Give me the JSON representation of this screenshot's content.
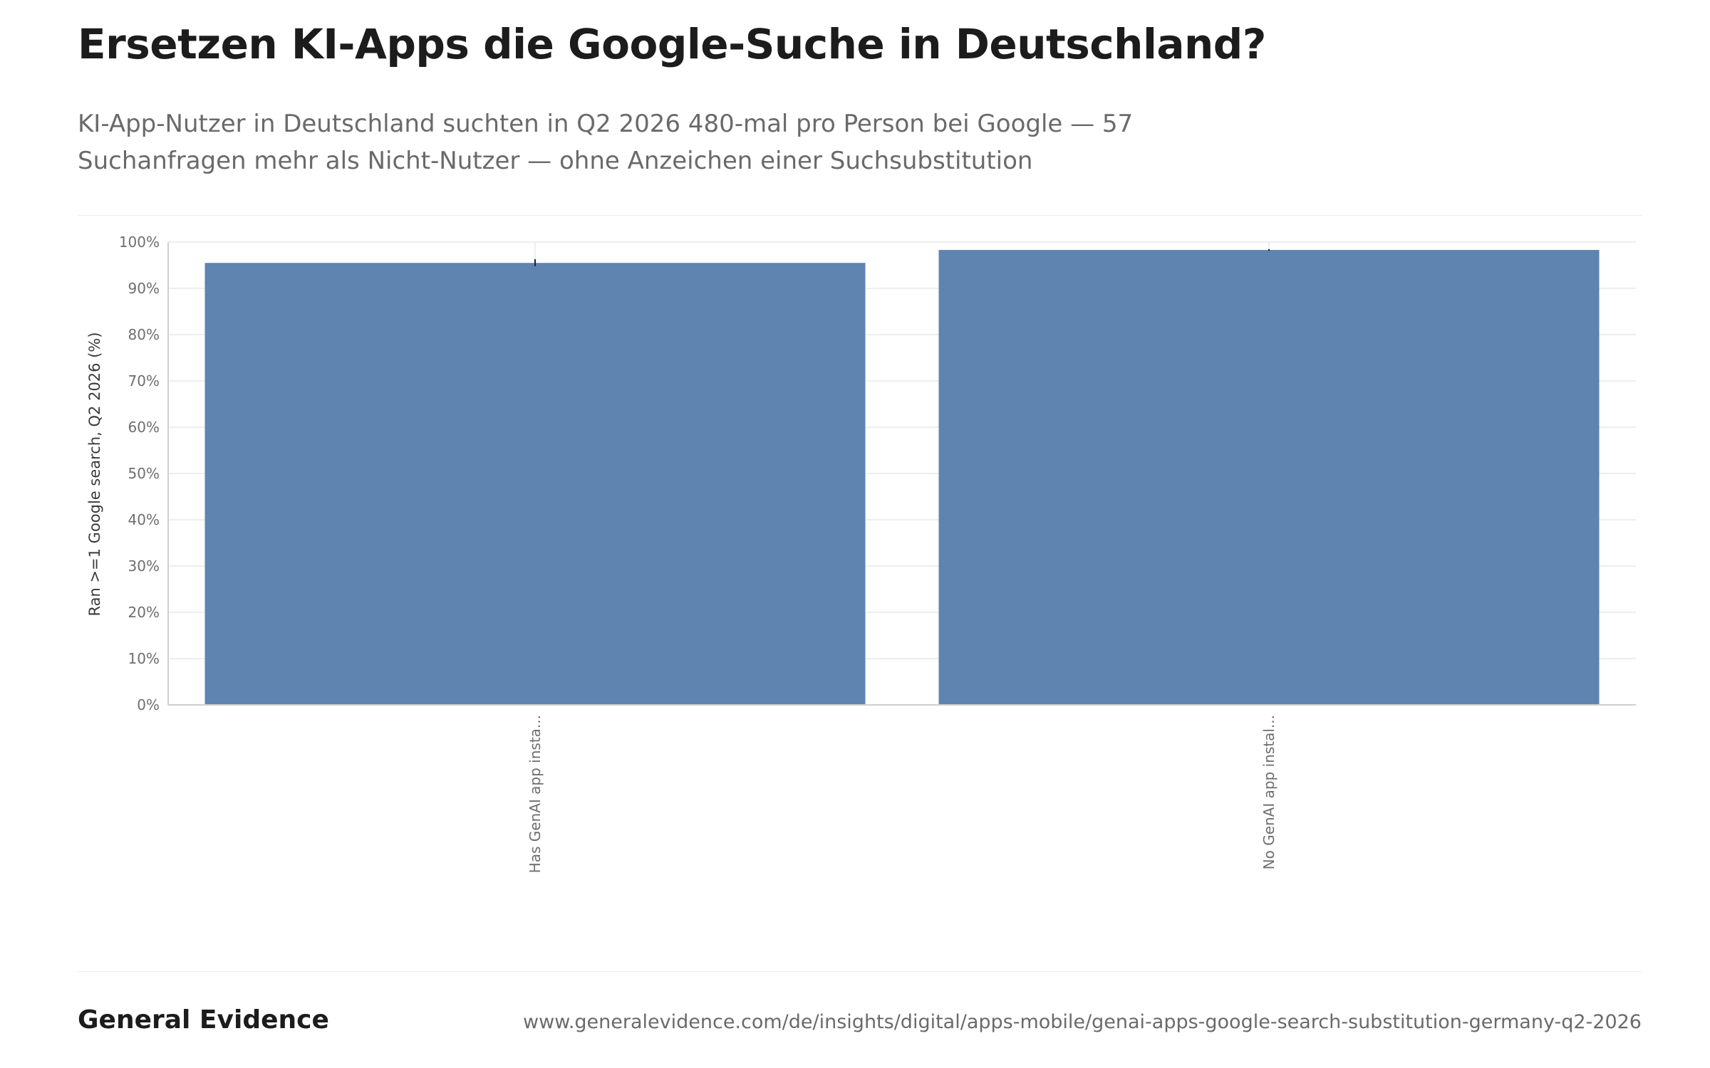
{
  "title": "Ersetzen KI-Apps die Google-Suche in Deutschland?",
  "subtitle": "KI-App-Nutzer in Deutschland suchten in Q2 2026 480-mal pro Person bei Google — 57 Suchanfragen mehr als Nicht-Nutzer — ohne Anzeichen einer Suchsubstitution",
  "footer": {
    "brand": "General Evidence",
    "url": "www.generalevidence.com/de/insights/digital/apps-mobile/genai-apps-google-search-substitution-germany-q2-2026"
  },
  "colors": {
    "bar": "#5f84b0",
    "grid": "#e9e9e9",
    "axis": "#cfcfcf",
    "error_bar": "#222222"
  },
  "chart_data": {
    "type": "bar",
    "categories": [
      "Has GenAI app insta...",
      "No GenAI app instal..."
    ],
    "values": [
      95.5,
      98.3
    ],
    "error_low": [
      94.8,
      98.1
    ],
    "error_high": [
      96.3,
      98.5
    ],
    "ylabel": "Ran >=1 Google search, Q2 2026 (%)",
    "xlabel": "",
    "ylim": [
      0,
      100
    ],
    "yticks": [
      0,
      10,
      20,
      30,
      40,
      50,
      60,
      70,
      80,
      90,
      100
    ],
    "ytick_labels": [
      "0%",
      "10%",
      "20%",
      "30%",
      "40%",
      "50%",
      "60%",
      "70%",
      "80%",
      "90%",
      "100%"
    ],
    "grid": true,
    "legend": "none"
  }
}
